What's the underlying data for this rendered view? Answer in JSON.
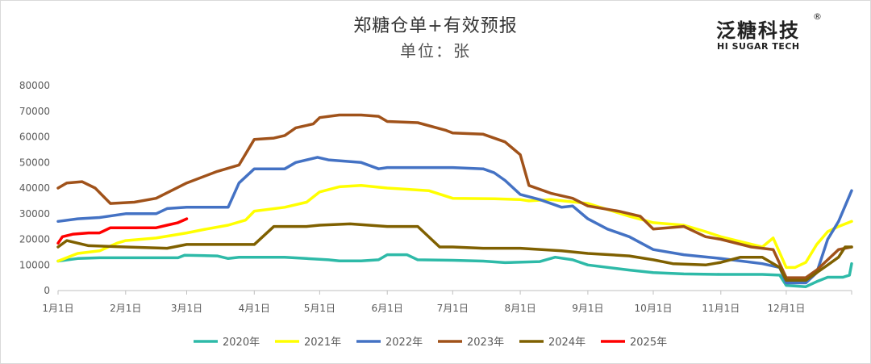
{
  "header": {
    "title": "郑糖仓单+有效预报",
    "subtitle": "单位：张"
  },
  "logo": {
    "cn": "泛糖科技",
    "reg": "®",
    "en": "HI SUGAR TECH"
  },
  "chart_data": {
    "type": "line",
    "title": "郑糖仓单+有效预报",
    "subtitle": "单位：张",
    "xlabel": "",
    "ylabel": "",
    "x_domain": [
      "1月1日",
      "12月31日"
    ],
    "x_ticks": [
      "1月1日",
      "2月1日",
      "3月1日",
      "4月1日",
      "5月1日",
      "6月1日",
      "7月1日",
      "8月1日",
      "9月1日",
      "10月1日",
      "11月1日",
      "12月1日"
    ],
    "ylim": [
      0,
      80000
    ],
    "y_ticks": [
      "0",
      "10000",
      "20000",
      "30000",
      "40000",
      "50000",
      "60000",
      "70000",
      "80000"
    ],
    "grid": false,
    "legend_position": "bottom",
    "series": [
      {
        "name": "2020年",
        "color": "#2ebaa8",
        "points": [
          [
            "1/1",
            11500
          ],
          [
            "1/10",
            12500
          ],
          [
            "1/20",
            12800
          ],
          [
            "2/10",
            12800
          ],
          [
            "2/25",
            12800
          ],
          [
            "2/28",
            13800
          ],
          [
            "3/15",
            13500
          ],
          [
            "3/20",
            12500
          ],
          [
            "3/25",
            13000
          ],
          [
            "4/15",
            13000
          ],
          [
            "4/25",
            12500
          ],
          [
            "5/5",
            12000
          ],
          [
            "5/10",
            11600
          ],
          [
            "5/20",
            11600
          ],
          [
            "5/28",
            12000
          ],
          [
            "6/1",
            14000
          ],
          [
            "6/10",
            14000
          ],
          [
            "6/15",
            12000
          ],
          [
            "7/1",
            11800
          ],
          [
            "7/15",
            11500
          ],
          [
            "7/25",
            10900
          ],
          [
            "8/10",
            11300
          ],
          [
            "8/17",
            13000
          ],
          [
            "8/25",
            12000
          ],
          [
            "9/1",
            10000
          ],
          [
            "9/20",
            8000
          ],
          [
            "10/1",
            7000
          ],
          [
            "10/15",
            6500
          ],
          [
            "11/1",
            6300
          ],
          [
            "11/20",
            6300
          ],
          [
            "11/28",
            6000
          ],
          [
            "12/1",
            2000
          ],
          [
            "12/10",
            1500
          ],
          [
            "12/15",
            3500
          ],
          [
            "12/20",
            5200
          ],
          [
            "12/27",
            5200
          ],
          [
            "12/30",
            6000
          ],
          [
            "12/31",
            10500
          ]
        ]
      },
      {
        "name": "2021年",
        "color": "#ffff00",
        "points": [
          [
            "1/1",
            11500
          ],
          [
            "1/10",
            14500
          ],
          [
            "1/20",
            15500
          ],
          [
            "1/28",
            18500
          ],
          [
            "2/1",
            19500
          ],
          [
            "2/15",
            20500
          ],
          [
            "3/1",
            22500
          ],
          [
            "3/10",
            24000
          ],
          [
            "3/20",
            25500
          ],
          [
            "3/28",
            27500
          ],
          [
            "4/1",
            31000
          ],
          [
            "4/15",
            32500
          ],
          [
            "4/25",
            34500
          ],
          [
            "5/1",
            38500
          ],
          [
            "5/10",
            40500
          ],
          [
            "5/20",
            41000
          ],
          [
            "6/1",
            40000
          ],
          [
            "6/20",
            39000
          ],
          [
            "7/1",
            36000
          ],
          [
            "7/20",
            35800
          ],
          [
            "8/1",
            35500
          ],
          [
            "8/5",
            35000
          ],
          [
            "8/15",
            35500
          ],
          [
            "9/1",
            34000
          ],
          [
            "9/20",
            29000
          ],
          [
            "10/1",
            26500
          ],
          [
            "10/15",
            25500
          ],
          [
            "10/25",
            23000
          ],
          [
            "11/1",
            21000
          ],
          [
            "11/20",
            17000
          ],
          [
            "11/25",
            20500
          ],
          [
            "12/1",
            9000
          ],
          [
            "12/5",
            9000
          ],
          [
            "12/10",
            11000
          ],
          [
            "12/15",
            18000
          ],
          [
            "12/20",
            23000
          ],
          [
            "12/25",
            25000
          ],
          [
            "12/31",
            27000
          ]
        ]
      },
      {
        "name": "2022年",
        "color": "#4472c4",
        "points": [
          [
            "1/1",
            27000
          ],
          [
            "1/10",
            28000
          ],
          [
            "1/20",
            28500
          ],
          [
            "2/1",
            30000
          ],
          [
            "2/15",
            30000
          ],
          [
            "2/20",
            32000
          ],
          [
            "3/1",
            32500
          ],
          [
            "3/20",
            32500
          ],
          [
            "3/25",
            42000
          ],
          [
            "4/1",
            47500
          ],
          [
            "4/15",
            47500
          ],
          [
            "4/20",
            50000
          ],
          [
            "4/30",
            52000
          ],
          [
            "5/5",
            51000
          ],
          [
            "5/20",
            50000
          ],
          [
            "5/28",
            47500
          ],
          [
            "6/1",
            48000
          ],
          [
            "6/15",
            48000
          ],
          [
            "7/1",
            48000
          ],
          [
            "7/15",
            47500
          ],
          [
            "7/20",
            46000
          ],
          [
            "7/25",
            43000
          ],
          [
            "8/1",
            37500
          ],
          [
            "8/10",
            35500
          ],
          [
            "8/20",
            32500
          ],
          [
            "8/25",
            33000
          ],
          [
            "9/1",
            28000
          ],
          [
            "9/10",
            24000
          ],
          [
            "9/20",
            21000
          ],
          [
            "10/1",
            16000
          ],
          [
            "10/15",
            14000
          ],
          [
            "11/1",
            12500
          ],
          [
            "11/20",
            10500
          ],
          [
            "11/28",
            9000
          ],
          [
            "12/1",
            3000
          ],
          [
            "12/10",
            3000
          ],
          [
            "12/15",
            7000
          ],
          [
            "12/20",
            20000
          ],
          [
            "12/25",
            27000
          ],
          [
            "12/31",
            39000
          ]
        ]
      },
      {
        "name": "2023年",
        "color": "#a0521a",
        "points": [
          [
            "1/1",
            40000
          ],
          [
            "1/5",
            42000
          ],
          [
            "1/12",
            42500
          ],
          [
            "1/18",
            40000
          ],
          [
            "1/25",
            34000
          ],
          [
            "2/5",
            34500
          ],
          [
            "2/15",
            36000
          ],
          [
            "3/1",
            42000
          ],
          [
            "3/15",
            46500
          ],
          [
            "3/25",
            49000
          ],
          [
            "4/1",
            59000
          ],
          [
            "4/10",
            59500
          ],
          [
            "4/15",
            60500
          ],
          [
            "4/20",
            63500
          ],
          [
            "4/28",
            65000
          ],
          [
            "5/1",
            67500
          ],
          [
            "5/10",
            68500
          ],
          [
            "5/20",
            68500
          ],
          [
            "5/28",
            68000
          ],
          [
            "6/1",
            66000
          ],
          [
            "6/15",
            65500
          ],
          [
            "6/28",
            62500
          ],
          [
            "7/1",
            61500
          ],
          [
            "7/15",
            61000
          ],
          [
            "7/25",
            58000
          ],
          [
            "8/1",
            53000
          ],
          [
            "8/5",
            41000
          ],
          [
            "8/15",
            38000
          ],
          [
            "8/25",
            36000
          ],
          [
            "9/1",
            33000
          ],
          [
            "9/15",
            31000
          ],
          [
            "9/25",
            29000
          ],
          [
            "10/1",
            24000
          ],
          [
            "10/15",
            25000
          ],
          [
            "10/25",
            21000
          ],
          [
            "11/1",
            20000
          ],
          [
            "11/15",
            17000
          ],
          [
            "11/25",
            16000
          ],
          [
            "12/1",
            5000
          ],
          [
            "12/10",
            5000
          ],
          [
            "12/15",
            8000
          ],
          [
            "12/20",
            12000
          ],
          [
            "12/25",
            16000
          ],
          [
            "12/31",
            17000
          ]
        ]
      },
      {
        "name": "2024年",
        "color": "#7f6000",
        "points": [
          [
            "1/1",
            17000
          ],
          [
            "1/5",
            19500
          ],
          [
            "1/15",
            17500
          ],
          [
            "2/1",
            17000
          ],
          [
            "2/20",
            16500
          ],
          [
            "3/1",
            18000
          ],
          [
            "3/15",
            18000
          ],
          [
            "3/25",
            18000
          ],
          [
            "4/1",
            18000
          ],
          [
            "4/10",
            25000
          ],
          [
            "4/25",
            25000
          ],
          [
            "5/1",
            25500
          ],
          [
            "5/15",
            26000
          ],
          [
            "6/1",
            25000
          ],
          [
            "6/15",
            25000
          ],
          [
            "6/25",
            17000
          ],
          [
            "7/1",
            17000
          ],
          [
            "7/15",
            16500
          ],
          [
            "8/1",
            16500
          ],
          [
            "8/20",
            15500
          ],
          [
            "9/1",
            14500
          ],
          [
            "9/20",
            13500
          ],
          [
            "10/1",
            12000
          ],
          [
            "10/10",
            10500
          ],
          [
            "10/25",
            10000
          ],
          [
            "11/1",
            11000
          ],
          [
            "11/10",
            13000
          ],
          [
            "11/20",
            13000
          ],
          [
            "11/28",
            9000
          ],
          [
            "12/1",
            4000
          ],
          [
            "12/10",
            4000
          ],
          [
            "12/15",
            7000
          ],
          [
            "12/20",
            10000
          ],
          [
            "12/25",
            13000
          ],
          [
            "12/28",
            17000
          ],
          [
            "12/31",
            17000
          ]
        ]
      },
      {
        "name": "2025年",
        "color": "#ff0000",
        "points": [
          [
            "1/1",
            18500
          ],
          [
            "1/3",
            21000
          ],
          [
            "1/8",
            22000
          ],
          [
            "1/15",
            22500
          ],
          [
            "1/20",
            22500
          ],
          [
            "1/25",
            24500
          ],
          [
            "2/5",
            24500
          ],
          [
            "2/15",
            24500
          ],
          [
            "2/20",
            25500
          ],
          [
            "2/25",
            26500
          ],
          [
            "3/1",
            28000
          ]
        ]
      }
    ]
  }
}
